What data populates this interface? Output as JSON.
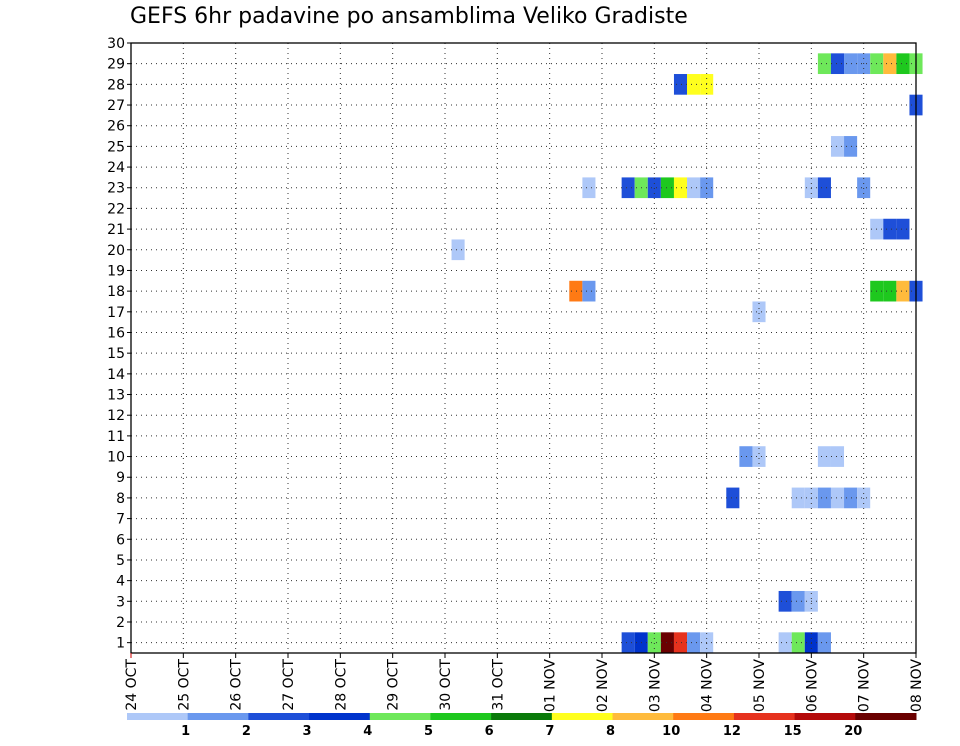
{
  "chart_data": {
    "type": "heatmap",
    "title": "GEFS 6hr padavine po ansamblima Veliko Gradiste",
    "xlabel": "",
    "ylabel": "",
    "x_tick_labels": [
      "24 OCT",
      "25 OCT",
      "26 OCT",
      "27 OCT",
      "28 OCT",
      "29 OCT",
      "30 OCT",
      "31 OCT",
      "01 NOV",
      "02 NOV",
      "03 NOV",
      "04 NOV",
      "05 NOV",
      "06 NOV",
      "07 NOV",
      "08 NOV"
    ],
    "x_unit": "6-hour steps from 24 OCT 00Z",
    "xlim": [
      0,
      60
    ],
    "ylim": [
      0.5,
      30
    ],
    "y_ticks": [
      1,
      2,
      3,
      4,
      5,
      6,
      7,
      8,
      9,
      10,
      11,
      12,
      13,
      14,
      15,
      16,
      17,
      18,
      19,
      20,
      21,
      22,
      23,
      24,
      25,
      26,
      27,
      28,
      29,
      30
    ],
    "grid": true,
    "color_scale": {
      "levels": [
        "1",
        "2",
        "3",
        "4",
        "5",
        "6",
        "7",
        "8",
        "10",
        "12",
        "15",
        "20"
      ],
      "colors": [
        "#aec8f8",
        "#6a98ee",
        "#1e4fd8",
        "#0033cc",
        "#6ee85a",
        "#1ec81e",
        "#0a7a0a",
        "#ffff1e",
        "#ffbb3c",
        "#ff7a14",
        "#e6321e",
        "#b40a0a",
        "#6a0000"
      ]
    },
    "cells": [
      {
        "member": 1,
        "step": 38,
        "color": 2
      },
      {
        "member": 1,
        "step": 39,
        "color": 3
      },
      {
        "member": 1,
        "step": 40,
        "color": 4
      },
      {
        "member": 1,
        "step": 41,
        "color": 12
      },
      {
        "member": 1,
        "step": 42,
        "color": 10
      },
      {
        "member": 1,
        "step": 43,
        "color": 1
      },
      {
        "member": 1,
        "step": 44,
        "color": 0
      },
      {
        "member": 1,
        "step": 50,
        "color": 0
      },
      {
        "member": 1,
        "step": 51,
        "color": 4
      },
      {
        "member": 1,
        "step": 52,
        "color": 3
      },
      {
        "member": 1,
        "step": 53,
        "color": 1
      },
      {
        "member": 3,
        "step": 50,
        "color": 2
      },
      {
        "member": 3,
        "step": 51,
        "color": 1
      },
      {
        "member": 3,
        "step": 52,
        "color": 0
      },
      {
        "member": 8,
        "step": 46,
        "color": 2
      },
      {
        "member": 8,
        "step": 51,
        "color": 0
      },
      {
        "member": 8,
        "step": 52,
        "color": 0
      },
      {
        "member": 8,
        "step": 53,
        "color": 1
      },
      {
        "member": 8,
        "step": 54,
        "color": 0
      },
      {
        "member": 8,
        "step": 55,
        "color": 1
      },
      {
        "member": 8,
        "step": 56,
        "color": 0
      },
      {
        "member": 10,
        "step": 47,
        "color": 1
      },
      {
        "member": 10,
        "step": 48,
        "color": 0
      },
      {
        "member": 10,
        "step": 53,
        "color": 0
      },
      {
        "member": 10,
        "step": 54,
        "color": 0
      },
      {
        "member": 17,
        "step": 48,
        "color": 0
      },
      {
        "member": 18,
        "step": 34,
        "color": 9
      },
      {
        "member": 18,
        "step": 35,
        "color": 1
      },
      {
        "member": 18,
        "step": 57,
        "color": 5
      },
      {
        "member": 18,
        "step": 58,
        "color": 5
      },
      {
        "member": 18,
        "step": 59,
        "color": 8
      },
      {
        "member": 18,
        "step": 60,
        "color": 2
      },
      {
        "member": 20,
        "step": 25,
        "color": 0
      },
      {
        "member": 21,
        "step": 57,
        "color": 0
      },
      {
        "member": 21,
        "step": 58,
        "color": 2
      },
      {
        "member": 21,
        "step": 59,
        "color": 2
      },
      {
        "member": 23,
        "step": 35,
        "color": 0
      },
      {
        "member": 23,
        "step": 38,
        "color": 2
      },
      {
        "member": 23,
        "step": 39,
        "color": 4
      },
      {
        "member": 23,
        "step": 40,
        "color": 2
      },
      {
        "member": 23,
        "step": 41,
        "color": 5
      },
      {
        "member": 23,
        "step": 42,
        "color": 7
      },
      {
        "member": 23,
        "step": 43,
        "color": 0
      },
      {
        "member": 23,
        "step": 44,
        "color": 1
      },
      {
        "member": 23,
        "step": 52,
        "color": 0
      },
      {
        "member": 23,
        "step": 53,
        "color": 2
      },
      {
        "member": 23,
        "step": 56,
        "color": 1
      },
      {
        "member": 25,
        "step": 54,
        "color": 0
      },
      {
        "member": 25,
        "step": 55,
        "color": 1
      },
      {
        "member": 27,
        "step": 60,
        "color": 2
      },
      {
        "member": 28,
        "step": 42,
        "color": 2
      },
      {
        "member": 28,
        "step": 43,
        "color": 7
      },
      {
        "member": 28,
        "step": 44,
        "color": 7
      },
      {
        "member": 29,
        "step": 53,
        "color": 4
      },
      {
        "member": 29,
        "step": 54,
        "color": 2
      },
      {
        "member": 29,
        "step": 55,
        "color": 1
      },
      {
        "member": 29,
        "step": 56,
        "color": 1
      },
      {
        "member": 29,
        "step": 57,
        "color": 4
      },
      {
        "member": 29,
        "step": 58,
        "color": 8
      },
      {
        "member": 29,
        "step": 59,
        "color": 5
      },
      {
        "member": 29,
        "step": 60,
        "color": 4
      }
    ]
  }
}
